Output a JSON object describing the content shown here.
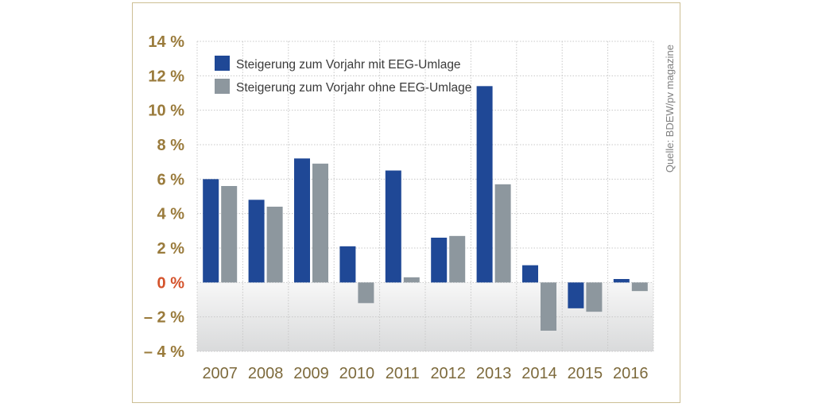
{
  "colors": {
    "with_eeg": "#1f4896",
    "without_eeg": "#8d979e",
    "zero_label": "#d4532c",
    "tick_label": "#9a7b3c",
    "frame": "#cdbf94"
  },
  "chart_data": {
    "type": "bar",
    "title": "",
    "xlabel": "",
    "ylabel": "",
    "ylim": [
      -4,
      14
    ],
    "yticks": [
      14,
      12,
      10,
      8,
      6,
      4,
      2,
      0,
      -2,
      -4
    ],
    "ytick_labels": [
      "14 %",
      "12 %",
      "10 %",
      "8 %",
      "6 %",
      "4 %",
      "2 %",
      "0 %",
      "– 2 %",
      "– 4 %"
    ],
    "categories": [
      "2007",
      "2008",
      "2009",
      "2010",
      "2011",
      "2012",
      "2013",
      "2014",
      "2015",
      "2016"
    ],
    "series": [
      {
        "name": "Steigerung zum Vorjahr mit EEG-Umlage",
        "color": "#1f4896",
        "values": [
          6.0,
          4.8,
          7.2,
          2.1,
          6.5,
          2.6,
          11.4,
          1.0,
          -1.5,
          0.2
        ]
      },
      {
        "name": "Steigerung zum Vorjahr ohne EEG-Umlage",
        "color": "#8d979e",
        "values": [
          5.6,
          4.4,
          6.9,
          -1.2,
          0.3,
          2.7,
          5.7,
          -2.8,
          -1.7,
          -0.5
        ]
      }
    ],
    "legend_position": "top-left",
    "grid": true,
    "source": "Quelle: BDEW/pv magazine"
  }
}
